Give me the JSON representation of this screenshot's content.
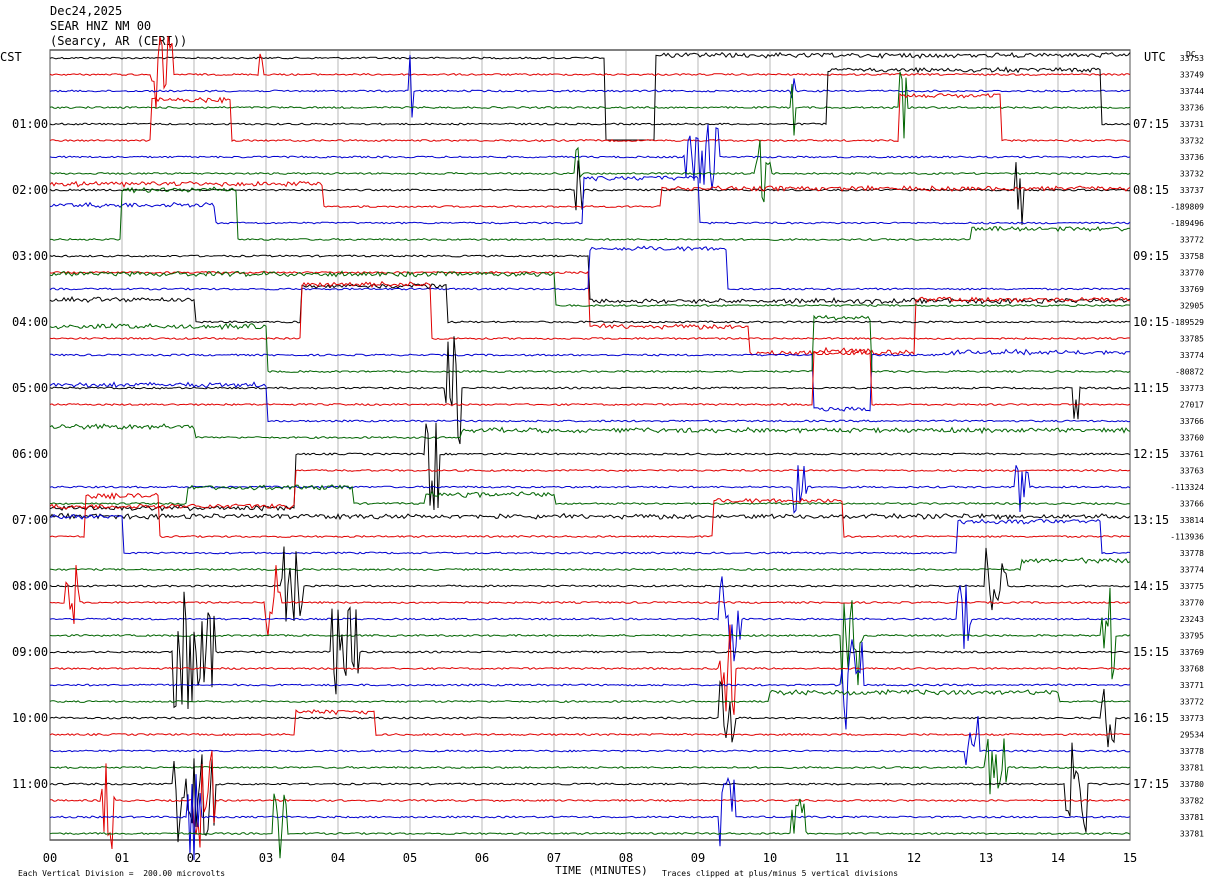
{
  "header": {
    "date": "Dec24,2025",
    "station": "SEAR HNZ NM 00",
    "location": "(Searcy, AR (CERI))"
  },
  "axes": {
    "left_tz": "CST",
    "right_tz": "UTC",
    "dc_label": "DC",
    "xlabel": "TIME (MINUTES)"
  },
  "footer": {
    "scale_note": "Each Vertical Division =  200.00 microvolts",
    "clip_note": "Traces clipped at plus/minus 5 vertical divisions"
  },
  "colors": {
    "trace_cycle": [
      "#000000",
      "#e00000",
      "#0000d0",
      "#006400"
    ],
    "grid": "#888888"
  },
  "chart_data": {
    "type": "line",
    "title": "SEAR HNZ NM 00",
    "x": {
      "label": "TIME (MINUTES)",
      "min": 0,
      "max": 15,
      "ticks": [
        "00",
        "01",
        "02",
        "03",
        "04",
        "05",
        "06",
        "07",
        "08",
        "09",
        "10",
        "11",
        "12",
        "13",
        "14",
        "15"
      ]
    },
    "cst_labels": [
      "01:00",
      "02:00",
      "03:00",
      "04:00",
      "05:00",
      "06:00",
      "07:00",
      "08:00",
      "09:00",
      "10:00",
      "11:00"
    ],
    "utc_labels": [
      "07:15",
      "08:15",
      "09:15",
      "10:15",
      "11:15",
      "12:15",
      "13:15",
      "14:15",
      "15:15",
      "16:15",
      "17:15"
    ],
    "rows_per_hour": 4,
    "minutes_per_row": 15,
    "dc_offsets": [
      "33753",
      "33749",
      "33744",
      "33736",
      "33731",
      "33732",
      "33736",
      "33732",
      "33737",
      "-189809",
      "-189496",
      "33772",
      "33758",
      "33770",
      "33769",
      "32905",
      "-189529",
      "33785",
      "33774",
      "-80872",
      "33773",
      "27017",
      "33766",
      "33760",
      "33761",
      "33763",
      "-113324",
      "33766",
      "33814",
      "-113936",
      "33778",
      "33774",
      "33775",
      "33770",
      "23243",
      "33795",
      "33769",
      "33768",
      "33771",
      "33772",
      "33773",
      "29534",
      "33778",
      "33781",
      "33780",
      "33782",
      "33781",
      "33781"
    ],
    "vertical_division_microvolts": 200.0,
    "clip_divisions": 5,
    "grid": true,
    "rows": [
      {
        "base": 33753,
        "ev": [
          [
            7.7,
            8.4,
            -180
          ],
          [
            8.4,
            15,
            3
          ]
        ]
      },
      {
        "base": 33749,
        "ev": [
          [
            2.9,
            2.95,
            60
          ],
          [
            1.4,
            1.7,
            40
          ]
        ]
      },
      {
        "base": 33744,
        "ev": [
          [
            5.0,
            5.05,
            -40
          ],
          [
            10.3,
            10.35,
            50
          ]
        ]
      },
      {
        "base": 33736,
        "ev": [
          [
            10.3,
            10.35,
            30
          ],
          [
            11.8,
            11.9,
            40
          ]
        ]
      },
      {
        "base": 33731,
        "ev": [
          [
            10.8,
            14.6,
            60
          ]
        ]
      },
      {
        "base": 33732,
        "ev": [
          [
            1.4,
            2.5,
            45
          ],
          [
            11.8,
            13.2,
            50
          ]
        ]
      },
      {
        "base": 33736,
        "ev": [
          [
            8.8,
            9.3,
            35
          ]
        ]
      },
      {
        "base": 33732,
        "ev": [
          [
            7.3,
            7.4,
            30
          ],
          [
            9.8,
            10.0,
            40
          ]
        ]
      },
      {
        "base": 33737,
        "ev": [
          [
            7.3,
            7.4,
            30
          ],
          [
            13.4,
            13.5,
            40
          ]
        ]
      },
      {
        "base": -189809,
        "ev": [
          [
            0,
            3.8,
            25
          ],
          [
            8.5,
            15,
            20
          ]
        ]
      },
      {
        "base": -189496,
        "ev": [
          [
            0,
            2.3,
            20
          ],
          [
            7.4,
            9.0,
            50
          ]
        ]
      },
      {
        "base": 33772,
        "ev": [
          [
            1.0,
            2.6,
            55
          ],
          [
            12.8,
            15,
            12
          ]
        ]
      },
      {
        "base": 33758,
        "ev": [
          [
            7.5,
            15,
            -50
          ]
        ]
      },
      {
        "base": 33770,
        "ev": [
          [
            7.5,
            12.0,
            -60
          ],
          [
            9.7,
            15,
            -30
          ]
        ]
      },
      {
        "base": 33769,
        "ev": [
          [
            7.5,
            9.4,
            45
          ]
        ]
      },
      {
        "base": 32905,
        "ev": [
          [
            0,
            7.0,
            35
          ]
        ]
      },
      {
        "base": -189529,
        "ev": [
          [
            0,
            2.0,
            25
          ],
          [
            3.5,
            5.5,
            40
          ]
        ]
      },
      {
        "base": 33785,
        "ev": [
          [
            3.5,
            5.3,
            60
          ]
        ]
      },
      {
        "base": 33774,
        "ev": [
          [
            10.6,
            11.4,
            -60
          ],
          [
            12.4,
            15,
            3
          ]
        ]
      },
      {
        "base": -80872,
        "ev": [
          [
            0,
            3.0,
            50
          ],
          [
            10.6,
            11.4,
            60
          ]
        ]
      },
      {
        "base": 33773,
        "ev": [
          [
            5.5,
            5.7,
            60
          ],
          [
            14.2,
            14.3,
            40
          ]
        ]
      },
      {
        "base": 27017,
        "ev": [
          [
            10.6,
            11.4,
            60
          ]
        ]
      },
      {
        "base": 33766,
        "ev": [
          [
            0,
            3.0,
            40
          ]
        ]
      },
      {
        "base": 33760,
        "ev": [
          [
            0,
            2.0,
            12
          ],
          [
            5.7,
            15,
            8
          ]
        ]
      },
      {
        "base": 33761,
        "ev": [
          [
            0,
            3.4,
            -60
          ],
          [
            5.2,
            5.4,
            60
          ]
        ]
      },
      {
        "base": 33763,
        "ev": [
          [
            0,
            3.4,
            -40
          ]
        ]
      },
      {
        "base": -113324,
        "ev": [
          [
            10.3,
            10.5,
            40
          ],
          [
            13.4,
            13.6,
            30
          ]
        ]
      },
      {
        "base": 33766,
        "ev": [
          [
            1.9,
            4.2,
            18
          ],
          [
            5.2,
            7.0,
            10
          ]
        ]
      },
      {
        "base": 33814,
        "ev": [
          [
            0,
            15,
            4
          ]
        ]
      },
      {
        "base": -113936,
        "ev": [
          [
            0.5,
            1.5,
            45
          ],
          [
            9.2,
            11.0,
            40
          ]
        ]
      },
      {
        "base": 33778,
        "ev": [
          [
            0,
            1.0,
            40
          ],
          [
            12.6,
            14.6,
            35
          ]
        ]
      },
      {
        "base": 33774,
        "ev": [
          [
            13.5,
            15,
            10
          ]
        ]
      },
      {
        "base": 33775,
        "ev": [
          [
            3.2,
            3.5,
            40
          ],
          [
            13.0,
            13.3,
            40
          ]
        ]
      },
      {
        "base": 33770,
        "ev": [
          [
            0.2,
            0.4,
            45
          ],
          [
            3.0,
            3.2,
            45
          ]
        ]
      },
      {
        "base": 23243,
        "ev": [
          [
            9.3,
            9.6,
            50
          ],
          [
            12.6,
            12.8,
            45
          ]
        ]
      },
      {
        "base": 33795,
        "ev": [
          [
            11.0,
            11.3,
            50
          ],
          [
            14.6,
            14.8,
            50
          ]
        ]
      },
      {
        "base": 33769,
        "ev": [
          [
            1.7,
            2.3,
            60
          ],
          [
            3.9,
            4.3,
            45
          ]
        ]
      },
      {
        "base": 33768,
        "ev": [
          [
            9.3,
            9.5,
            50
          ]
        ]
      },
      {
        "base": 33771,
        "ev": [
          [
            11.0,
            11.3,
            50
          ]
        ]
      },
      {
        "base": 33772,
        "ev": [
          [
            10.0,
            14.0,
            10
          ]
        ]
      },
      {
        "base": 33773,
        "ev": [
          [
            9.3,
            9.5,
            50
          ],
          [
            14.6,
            14.8,
            50
          ]
        ]
      },
      {
        "base": 29534,
        "ev": [
          [
            3.4,
            4.5,
            25
          ]
        ]
      },
      {
        "base": 33778,
        "ev": [
          [
            12.7,
            12.9,
            40
          ]
        ]
      },
      {
        "base": 33781,
        "ev": [
          [
            13.0,
            13.3,
            30
          ]
        ]
      },
      {
        "base": 33780,
        "ev": [
          [
            1.7,
            2.3,
            60
          ],
          [
            14.1,
            14.4,
            50
          ]
        ]
      },
      {
        "base": 33782,
        "ev": [
          [
            0.7,
            0.9,
            50
          ],
          [
            2.0,
            2.3,
            50
          ]
        ]
      },
      {
        "base": 33781,
        "ev": [
          [
            1.9,
            2.1,
            50
          ],
          [
            9.3,
            9.5,
            40
          ]
        ]
      },
      {
        "base": 33781,
        "ev": [
          [
            3.1,
            3.3,
            40
          ],
          [
            10.3,
            10.5,
            40
          ]
        ]
      }
    ]
  }
}
